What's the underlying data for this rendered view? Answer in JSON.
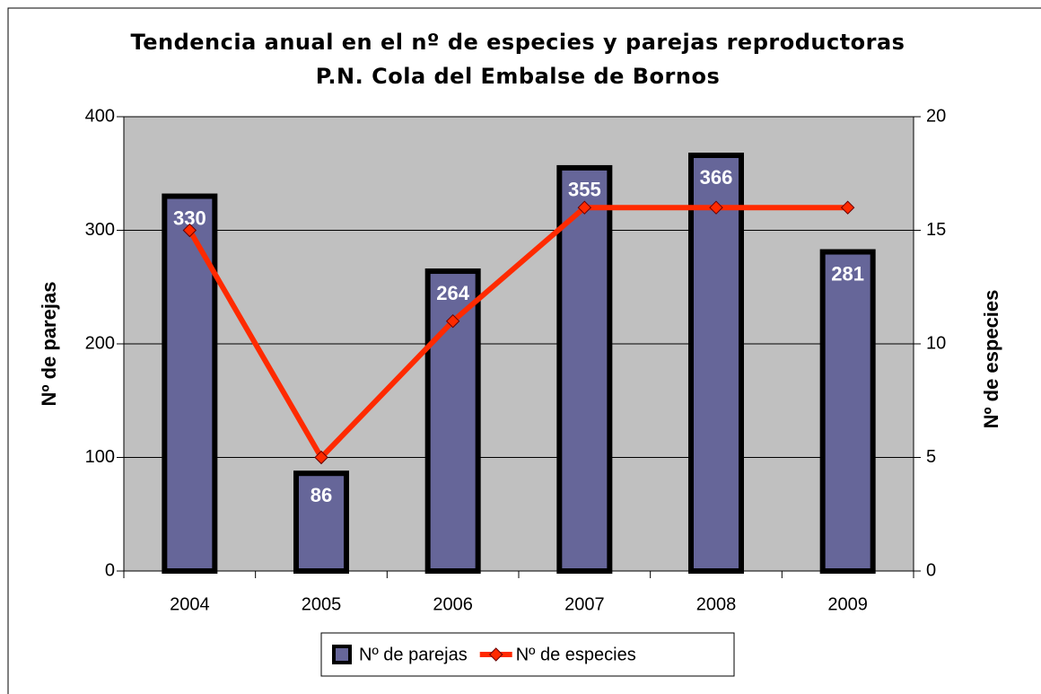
{
  "chart_data": {
    "type": "bar",
    "title": "Tendencia anual en el nº de especies y parejas reproductoras",
    "subtitle": "P.N. Cola del Embalse de Bornos",
    "y_label": "Nº de parejas",
    "y2_label": "Nº de especies",
    "categories": [
      "2004",
      "2005",
      "2006",
      "2007",
      "2008",
      "2009"
    ],
    "series": [
      {
        "name": "Nº de parejas",
        "type": "bar",
        "color": "#666699",
        "values": [
          330,
          86,
          264,
          355,
          366,
          281
        ]
      },
      {
        "name": "Nº de especies",
        "type": "line",
        "axis": "y2",
        "color": "#ff2a00",
        "values": [
          15,
          5,
          11,
          16,
          16,
          16
        ]
      }
    ],
    "ylim": [
      0,
      400
    ],
    "yticks": [
      0,
      100,
      200,
      300,
      400
    ],
    "y2lim": [
      0,
      20
    ],
    "y2ticks": [
      0,
      5,
      10,
      15,
      20
    ],
    "grid": true,
    "legend": "bottom",
    "plot_background": "#c0c0c0"
  }
}
